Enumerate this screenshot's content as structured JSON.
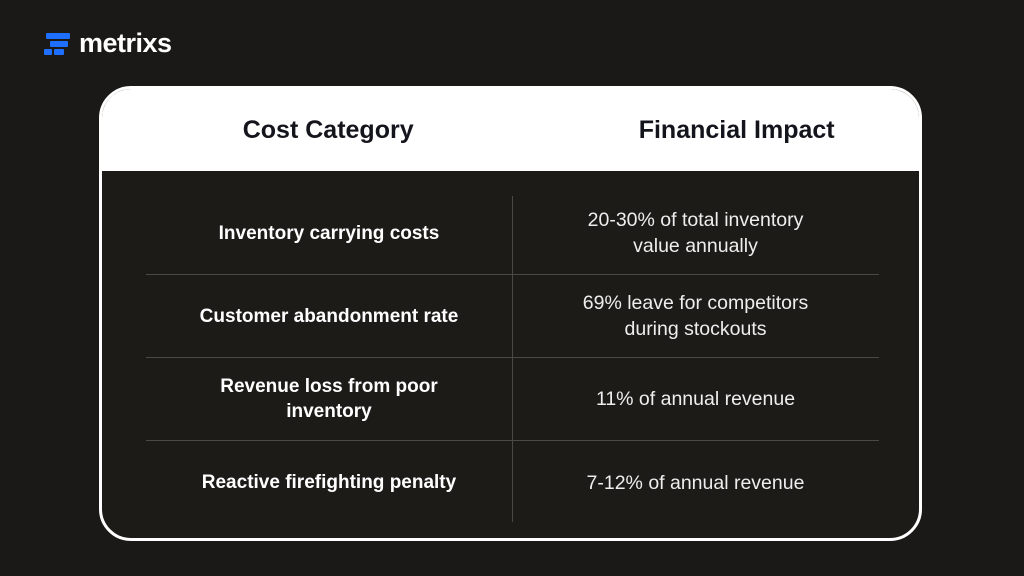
{
  "brand": {
    "name": "metrixs",
    "accent": "#1f6fff"
  },
  "table": {
    "headers": [
      "Cost Category",
      "Financial Impact"
    ],
    "rows": [
      {
        "category": "Inventory carrying costs",
        "impact": "20-30% of total inventory value annually"
      },
      {
        "category": "Customer abandonment rate",
        "impact": "69% leave for competitors during stockouts"
      },
      {
        "category": "Revenue loss from poor inventory",
        "impact": "11% of annual revenue"
      },
      {
        "category": "Reactive firefighting penalty",
        "impact": "7-12% of annual revenue"
      }
    ]
  }
}
